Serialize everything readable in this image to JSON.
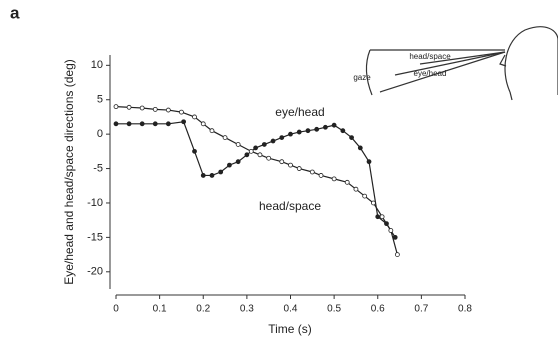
{
  "chart_data": {
    "type": "line",
    "panel_label": "a",
    "ylabel": "Eye/head and head/space directions (deg)",
    "xlabel": "Time (s)",
    "xlim": [
      0,
      0.8
    ],
    "xticks": [
      0,
      0.1,
      0.2,
      0.3,
      0.4,
      0.5,
      0.6,
      0.7,
      0.8
    ],
    "ylim": [
      -22.5,
      11.5
    ],
    "yticks": [
      10,
      5,
      0,
      -5,
      -10,
      -15,
      -20
    ],
    "annotations": [
      "eye/head",
      "head/space"
    ],
    "inset_labels": [
      "head/space",
      "eye/head",
      "gaze"
    ],
    "series": [
      {
        "name": "eye/head",
        "color": "#222",
        "marker": "filled",
        "x": [
          0,
          0.03,
          0.06,
          0.09,
          0.12,
          0.155,
          0.18,
          0.2,
          0.22,
          0.24,
          0.26,
          0.28,
          0.3,
          0.32,
          0.34,
          0.36,
          0.38,
          0.4,
          0.42,
          0.44,
          0.46,
          0.48,
          0.5,
          0.52,
          0.54,
          0.56,
          0.58,
          0.6,
          0.62,
          0.64
        ],
        "values": [
          1.5,
          1.5,
          1.5,
          1.5,
          1.5,
          1.8,
          -2.5,
          -6,
          -6,
          -5.5,
          -4.5,
          -4,
          -3,
          -2,
          -1.5,
          -1,
          -0.5,
          0,
          0.3,
          0.5,
          0.7,
          1,
          1.3,
          0.5,
          -0.5,
          -2,
          -4,
          -12,
          -13,
          -15
        ]
      },
      {
        "name": "head/space",
        "color": "#222",
        "marker": "open",
        "x": [
          0,
          0.03,
          0.06,
          0.09,
          0.12,
          0.15,
          0.18,
          0.2,
          0.22,
          0.25,
          0.28,
          0.31,
          0.33,
          0.35,
          0.38,
          0.4,
          0.42,
          0.45,
          0.47,
          0.5,
          0.53,
          0.55,
          0.57,
          0.59,
          0.61,
          0.63,
          0.645
        ],
        "values": [
          4,
          3.9,
          3.8,
          3.6,
          3.5,
          3.2,
          2.5,
          1.5,
          0.5,
          -0.5,
          -1.5,
          -2.5,
          -3,
          -3.5,
          -4,
          -4.5,
          -5,
          -5.5,
          -6,
          -6.5,
          -7,
          -8,
          -9,
          -10,
          -12,
          -14,
          -17.5
        ]
      }
    ]
  }
}
